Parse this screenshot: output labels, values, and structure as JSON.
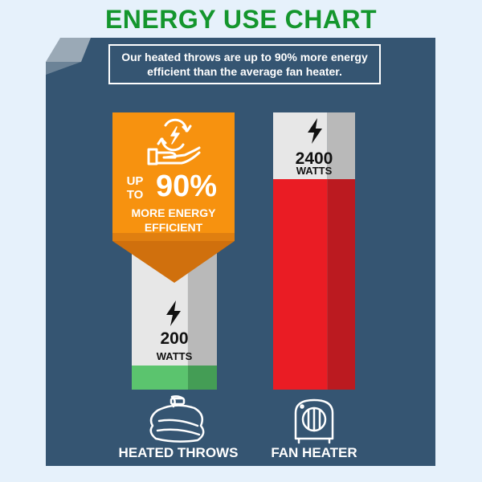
{
  "title": "ENERGY USE CHART",
  "subtitle": "Our heated throws are up to 90% more energy efficient than the average fan heater.",
  "colors": {
    "title": "#14962d",
    "panel": "#355572",
    "callout": "#f7920f",
    "throw_bar": "#5bc46e",
    "heater_bar": "#ea1c24"
  },
  "callout": {
    "prefix_line1": "UP",
    "prefix_line2": "TO",
    "percent": "90%",
    "line1": "MORE ENERGY",
    "line2": "EFFICIENT",
    "icon": "hand-energy-cycle-icon"
  },
  "chart_data": {
    "type": "bar",
    "categories": [
      "HEATED THROWS",
      "FAN HEATER"
    ],
    "values": [
      200,
      2400
    ],
    "unit": "WATTS",
    "value_labels": [
      "200",
      "2400"
    ],
    "icons": [
      "blanket-icon",
      "fan-heater-icon"
    ],
    "bar_icons": [
      "lightning-icon",
      "lightning-icon"
    ]
  }
}
